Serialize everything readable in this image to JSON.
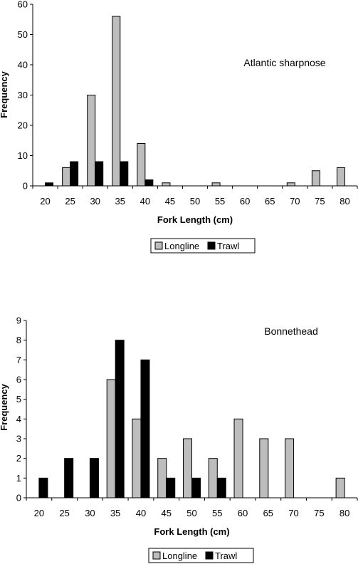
{
  "chart_data": [
    {
      "type": "bar",
      "annotation": "Atlantic sharpnose",
      "xlabel": "Fork Length (cm)",
      "ylabel": "Frequency",
      "ylim": [
        0,
        60
      ],
      "yticks": [
        "0",
        "10",
        "20",
        "30",
        "40",
        "50",
        "60"
      ],
      "categories": [
        "20",
        "25",
        "30",
        "35",
        "40",
        "45",
        "50",
        "55",
        "60",
        "65",
        "70",
        "75",
        "80"
      ],
      "series": [
        {
          "name": "Longline",
          "color": "#bdbdbd",
          "values": [
            0,
            6,
            30,
            56,
            14,
            1,
            0,
            1,
            0,
            0,
            1,
            5,
            6
          ]
        },
        {
          "name": "Trawl",
          "color": "#000000",
          "values": [
            1,
            8,
            8,
            8,
            2,
            0,
            0,
            0,
            0,
            0,
            0,
            0,
            0
          ]
        }
      ],
      "grid": false,
      "legend_position": "bottom-center"
    },
    {
      "type": "bar",
      "annotation": "Bonnethead",
      "xlabel": "Fork Length (cm)",
      "ylabel": "Frequency",
      "ylim": [
        0,
        9
      ],
      "yticks": [
        "0",
        "1",
        "2",
        "3",
        "4",
        "5",
        "6",
        "7",
        "8",
        "9"
      ],
      "categories": [
        "20",
        "25",
        "30",
        "35",
        "40",
        "45",
        "50",
        "55",
        "60",
        "65",
        "70",
        "75",
        "80"
      ],
      "series": [
        {
          "name": "Longline",
          "color": "#bdbdbd",
          "values": [
            0,
            0,
            0,
            6,
            4,
            2,
            3,
            2,
            4,
            3,
            3,
            0,
            1
          ]
        },
        {
          "name": "Trawl",
          "color": "#000000",
          "values": [
            1,
            2,
            2,
            8,
            7,
            1,
            1,
            1,
            0,
            0,
            0,
            0,
            0
          ]
        }
      ],
      "grid": false,
      "legend_position": "bottom-center"
    }
  ]
}
